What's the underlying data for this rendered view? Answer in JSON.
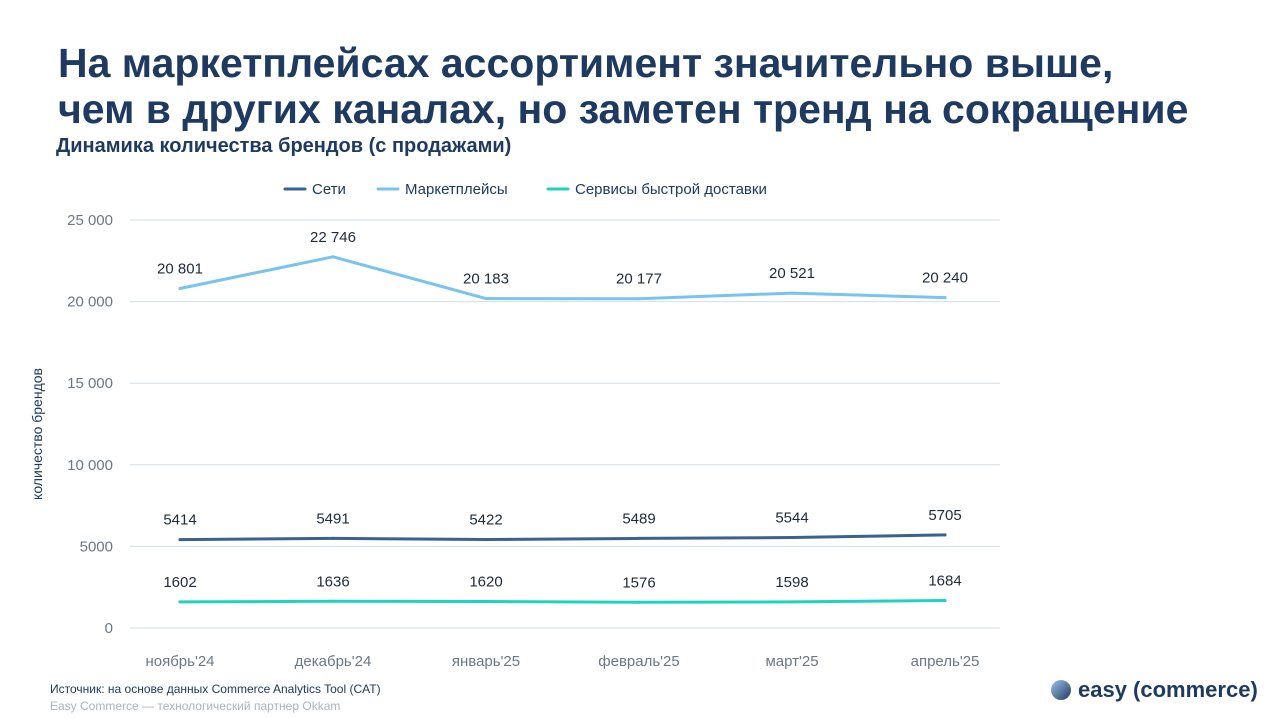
{
  "title_line1": "На маркетплейсах ассортимент значительно выше,",
  "title_line2": "чем в других каналах, но заметен тренд на сокращение",
  "subtitle": "Динамика количества брендов (с продажами)",
  "footer": {
    "source": "Источник: на основе данных Commerce Analytics Tool (CAT)",
    "partner": "Easy Commerce — технологический партнер Okkam"
  },
  "logo": {
    "text": "easy (commerce)"
  },
  "chart_data": {
    "type": "line",
    "ylabel": "количество брендов",
    "ylim": [
      0,
      25000
    ],
    "yticks": [
      0,
      5000,
      10000,
      15000,
      20000,
      25000
    ],
    "ytick_labels": [
      "0",
      "5000",
      "10 000",
      "15 000",
      "20 000",
      "25 000"
    ],
    "categories": [
      "ноябрь'24",
      "декабрь'24",
      "январь'25",
      "февраль'25",
      "март'25",
      "апрель'25"
    ],
    "grid": true,
    "legend_position": "top",
    "series": [
      {
        "name": "Сети",
        "color": "#3a6190",
        "values": [
          5414,
          5491,
          5422,
          5489,
          5544,
          5705
        ],
        "labels": [
          "5414",
          "5491",
          "5422",
          "5489",
          "5544",
          "5705"
        ]
      },
      {
        "name": "Маркетплейсы",
        "color": "#78c3ef",
        "values": [
          20801,
          22746,
          20183,
          20177,
          20521,
          20240
        ],
        "labels": [
          "20 801",
          "22 746",
          "20 183",
          "20 177",
          "20 521",
          "20 240"
        ]
      },
      {
        "name": "Сервисы быстрой доставки",
        "color": "#1fd3c3",
        "values": [
          1602,
          1636,
          1620,
          1576,
          1598,
          1684
        ],
        "labels": [
          "1602",
          "1636",
          "1620",
          "1576",
          "1598",
          "1684"
        ]
      }
    ]
  }
}
